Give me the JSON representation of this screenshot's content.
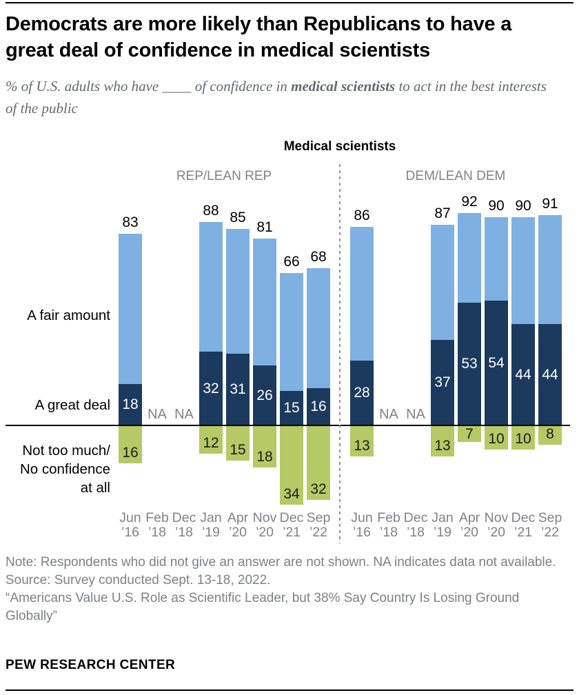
{
  "header": {
    "title": "Democrats are more likely than Republicans to have a great deal of confidence in medical scientists",
    "subtitle_prefix": "% of U.S. adults who have ____ of confidence in ",
    "subtitle_bold": "medical scientists",
    "subtitle_suffix": " to act in the best interests of the public"
  },
  "chart_data": {
    "type": "bar",
    "title": "Medical scientists",
    "orientation": "stacked columns above axis (A great deal + A fair amount = labeled total), Not too much/No confidence at all plotted below axis",
    "categories": [
      "Jun ’16",
      "Feb ’18",
      "Dec ’18",
      "Jan ’19",
      "Apr ’20",
      "Nov ’20",
      "Dec ’21",
      "Sep ’22"
    ],
    "na_label": "NA",
    "row_labels": {
      "fair_amount": "A fair amount",
      "great_deal": "A great deal",
      "not_too_much": "Not too much/\nNo confidence\nat all"
    },
    "panels": [
      {
        "label": "REP/LEAN REP",
        "total_confident": [
          83,
          null,
          null,
          88,
          85,
          81,
          66,
          68
        ],
        "great_deal": [
          18,
          null,
          null,
          32,
          31,
          26,
          15,
          16
        ],
        "not_too_much": [
          16,
          null,
          null,
          12,
          15,
          18,
          34,
          32
        ]
      },
      {
        "label": "DEM/LEAN DEM",
        "total_confident": [
          86,
          null,
          null,
          87,
          92,
          90,
          90,
          91
        ],
        "great_deal": [
          28,
          null,
          null,
          37,
          53,
          54,
          44,
          44
        ],
        "not_too_much": [
          13,
          null,
          null,
          13,
          7,
          10,
          10,
          8
        ]
      }
    ],
    "colors": {
      "fair_amount": "#7eb1e2",
      "great_deal": "#1b3a5e",
      "not_too_much": "#b5c964",
      "axis": "#000000",
      "muted_text": "#808285"
    }
  },
  "footer": {
    "note": "Note: Respondents who did not give an answer are not shown. NA indicates data not available.",
    "source": "Source: Survey conducted Sept. 13-18, 2022.",
    "quote": "“Americans Value U.S. Role as Scientific Leader, but 38% Say Country Is Losing Ground Globally”",
    "brand": "PEW RESEARCH CENTER"
  }
}
